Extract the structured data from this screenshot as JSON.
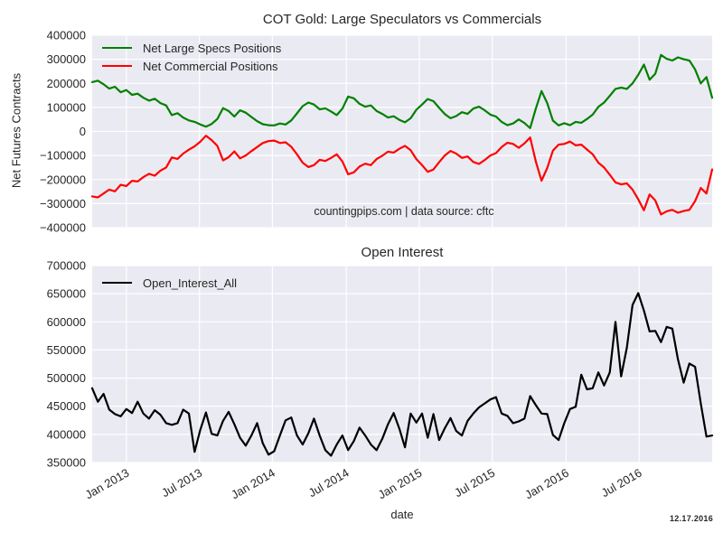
{
  "figure": {
    "watermark": "12.17.2016"
  },
  "colors": {
    "plot_bg": "#eaeaf2",
    "grid": "#ffffff",
    "text": "#262626",
    "specs_green": "#008000",
    "commercials_red": "#ff0000",
    "open_interest_black": "#000000"
  },
  "chart_data": [
    {
      "type": "line",
      "title": "COT Gold: Large Speculators vs Commercials",
      "ylabel": "Net Futures Contracts",
      "annotation": "countingpips.com | data source: cftc",
      "legend_position": "upper-left",
      "grid": true,
      "show_x_labels": false,
      "x_range_note": "weekly data, Oct 2012 - Dec 2016",
      "ylim": [
        -400000,
        400000
      ],
      "yticks": [
        400000,
        300000,
        200000,
        100000,
        0,
        -100000,
        -200000,
        -300000,
        -400000
      ],
      "yticklabels": [
        "400000",
        "300000",
        "200000",
        "100000",
        "0",
        "−100000",
        "−200000",
        "−300000",
        "−400000"
      ],
      "xticks": [
        {
          "label": "Jan 2013",
          "pos": 0.0552
        },
        {
          "label": "Jul 2013",
          "pos": 0.173
        },
        {
          "label": "Jan 2014",
          "pos": 0.2907
        },
        {
          "label": "Jul 2014",
          "pos": 0.4099
        },
        {
          "label": "Jan 2015",
          "pos": 0.5276
        },
        {
          "label": "Jul 2015",
          "pos": 0.6453
        },
        {
          "label": "Jan 2016",
          "pos": 0.7645
        },
        {
          "label": "Jul 2016",
          "pos": 0.8822
        }
      ],
      "series": [
        {
          "name": "Net Large Specs Positions",
          "color": "#008000",
          "values": [
            205000,
            211000,
            196000,
            178000,
            186000,
            163000,
            172000,
            152000,
            157000,
            140000,
            128000,
            136000,
            118000,
            108000,
            68000,
            76000,
            58000,
            46000,
            40000,
            29000,
            20000,
            31000,
            52000,
            97000,
            85000,
            62000,
            88000,
            78000,
            60000,
            43000,
            30000,
            26000,
            25000,
            33000,
            29000,
            46000,
            75000,
            105000,
            120000,
            112000,
            92000,
            96000,
            83000,
            68000,
            95000,
            145000,
            138000,
            115000,
            103000,
            108000,
            85000,
            73000,
            58000,
            63000,
            48000,
            38000,
            55000,
            90000,
            112000,
            135000,
            126000,
            98000,
            72000,
            55000,
            64000,
            80000,
            73000,
            95000,
            103000,
            88000,
            70000,
            62000,
            40000,
            26000,
            33000,
            50000,
            35000,
            14000,
            95000,
            168000,
            118000,
            45000,
            25000,
            34000,
            26000,
            40000,
            36000,
            52000,
            70000,
            102000,
            120000,
            148000,
            177000,
            182000,
            177000,
            200000,
            235000,
            278000,
            215000,
            240000,
            318000,
            302000,
            295000,
            308000,
            300000,
            295000,
            258000,
            200000,
            226000,
            140000
          ]
        },
        {
          "name": "Net Commercial Positions",
          "color": "#ff0000",
          "values": [
            -270000,
            -274000,
            -258000,
            -242000,
            -249000,
            -222000,
            -227000,
            -205000,
            -208000,
            -190000,
            -176000,
            -184000,
            -163000,
            -150000,
            -108000,
            -114000,
            -92000,
            -76000,
            -62000,
            -43000,
            -18000,
            -36000,
            -60000,
            -120000,
            -107000,
            -83000,
            -112000,
            -100000,
            -82000,
            -65000,
            -48000,
            -40000,
            -38000,
            -48000,
            -45000,
            -64000,
            -95000,
            -130000,
            -148000,
            -140000,
            -118000,
            -123000,
            -110000,
            -95000,
            -125000,
            -178000,
            -170000,
            -146000,
            -134000,
            -140000,
            -115000,
            -101000,
            -84000,
            -88000,
            -72000,
            -60000,
            -78000,
            -115000,
            -140000,
            -168000,
            -158000,
            -128000,
            -100000,
            -81000,
            -92000,
            -110000,
            -104000,
            -127000,
            -135000,
            -119000,
            -100000,
            -90000,
            -65000,
            -47000,
            -52000,
            -68000,
            -50000,
            -25000,
            -125000,
            -205000,
            -152000,
            -80000,
            -55000,
            -52000,
            -42000,
            -58000,
            -55000,
            -75000,
            -95000,
            -130000,
            -150000,
            -180000,
            -212000,
            -220000,
            -216000,
            -242000,
            -282000,
            -328000,
            -262000,
            -287000,
            -345000,
            -332000,
            -326000,
            -338000,
            -331000,
            -326000,
            -290000,
            -235000,
            -258000,
            -158000
          ]
        }
      ]
    },
    {
      "type": "line",
      "title": "Open Interest",
      "xlabel": "date",
      "legend_position": "upper-left",
      "grid": true,
      "show_x_labels": true,
      "x_range_note": "weekly data, Oct 2012 - Dec 2016",
      "ylim": [
        350000,
        700000
      ],
      "yticks": [
        700000,
        650000,
        600000,
        550000,
        500000,
        450000,
        400000,
        350000
      ],
      "yticklabels": [
        "700000",
        "650000",
        "600000",
        "550000",
        "500000",
        "450000",
        "400000",
        "350000"
      ],
      "xticks": [
        {
          "label": "Jan 2013",
          "pos": 0.0552
        },
        {
          "label": "Jul 2013",
          "pos": 0.173
        },
        {
          "label": "Jan 2014",
          "pos": 0.2907
        },
        {
          "label": "Jul 2014",
          "pos": 0.4099
        },
        {
          "label": "Jan 2015",
          "pos": 0.5276
        },
        {
          "label": "Jul 2015",
          "pos": 0.6453
        },
        {
          "label": "Jan 2016",
          "pos": 0.7645
        },
        {
          "label": "Jul 2016",
          "pos": 0.8822
        }
      ],
      "series": [
        {
          "name": "Open_Interest_All",
          "color": "#000000",
          "values": [
            482000,
            458000,
            472000,
            444000,
            436000,
            432000,
            445000,
            438000,
            458000,
            437000,
            428000,
            443000,
            435000,
            420000,
            417000,
            420000,
            444000,
            437000,
            369000,
            408000,
            439000,
            401000,
            398000,
            424000,
            440000,
            418000,
            394000,
            380000,
            398000,
            420000,
            384000,
            364000,
            370000,
            398000,
            425000,
            430000,
            398000,
            382000,
            402000,
            428000,
            398000,
            372000,
            362000,
            382000,
            398000,
            372000,
            388000,
            412000,
            398000,
            382000,
            372000,
            392000,
            418000,
            438000,
            410000,
            377000,
            437000,
            421000,
            437000,
            394000,
            436000,
            390000,
            411000,
            429000,
            406000,
            398000,
            424000,
            437000,
            448000,
            455000,
            462000,
            466000,
            437000,
            433000,
            420000,
            423000,
            428000,
            468000,
            452000,
            437000,
            436000,
            399000,
            390000,
            420000,
            445000,
            449000,
            506000,
            480000,
            482000,
            510000,
            487000,
            510000,
            600000,
            503000,
            554000,
            630000,
            651000,
            620000,
            583000,
            584000,
            564000,
            591000,
            588000,
            533000,
            492000,
            526000,
            520000,
            455000,
            396000,
            398000
          ]
        }
      ]
    }
  ]
}
